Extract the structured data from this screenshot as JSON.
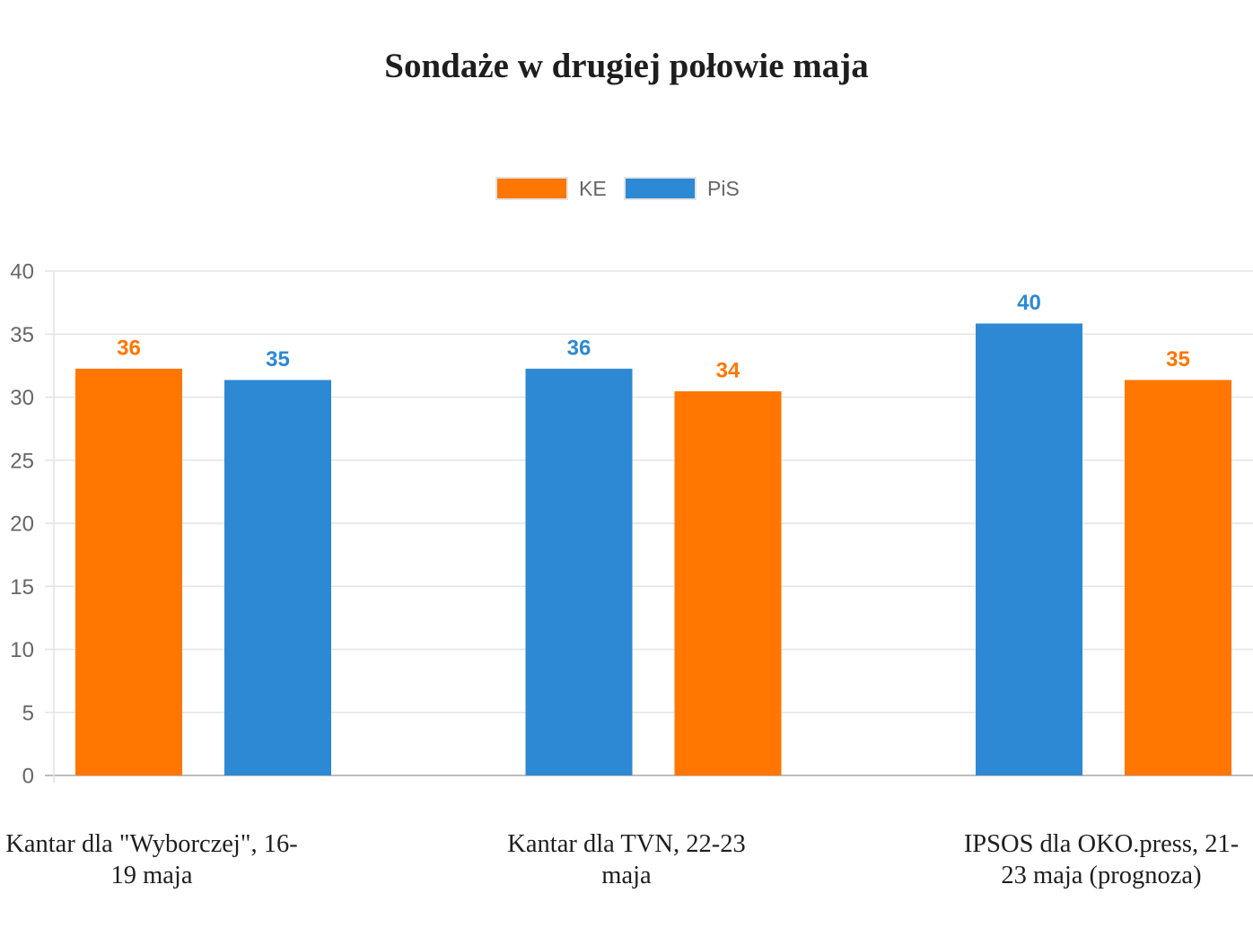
{
  "chart_data": {
    "type": "bar",
    "title": "Sondaże w drugiej połowie maja",
    "categories": [
      "Kantar dla \"Wyborczej\", 16-19 maja",
      "Kantar dla TVN, 22-23 maja",
      "IPSOS dla OKO.press, 21-23 maja (prognoza)"
    ],
    "series": [
      {
        "name": "KE",
        "color": "#FF7600",
        "values": [
          36,
          34,
          35
        ]
      },
      {
        "name": "PiS",
        "color": "#2D89D4",
        "values": [
          35,
          36,
          40
        ]
      }
    ],
    "ylim": [
      0,
      40
    ],
    "yticks": [
      0,
      5,
      10,
      15,
      20,
      25,
      30,
      35,
      40
    ],
    "grid": true,
    "legend": "top"
  }
}
